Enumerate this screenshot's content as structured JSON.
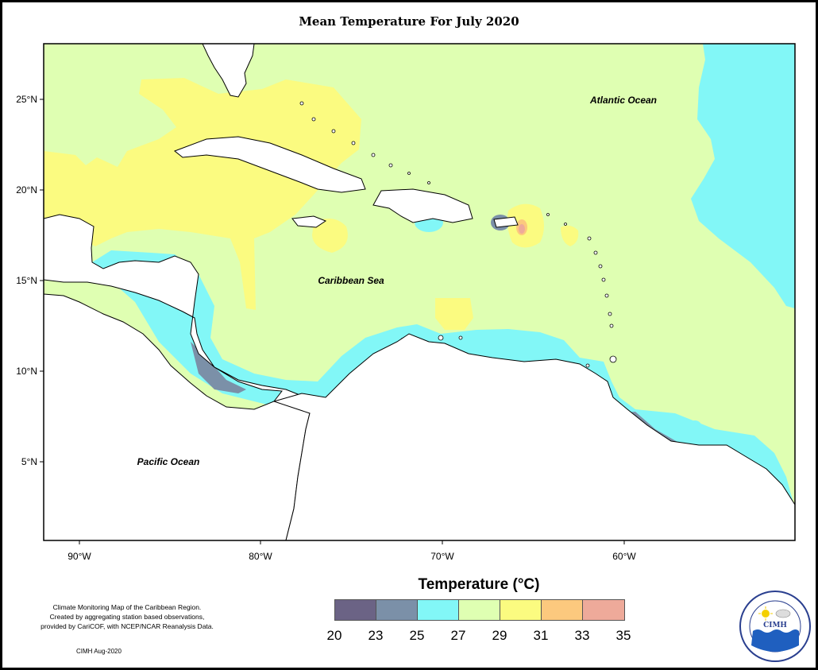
{
  "title": "Mean Temperature For July 2020",
  "map": {
    "lat_ticks": [
      "25°N",
      "20°N",
      "15°N",
      "10°N",
      "5°N"
    ],
    "lon_ticks": [
      "90°W",
      "80°W",
      "70°W",
      "60°W"
    ],
    "ocean_labels": {
      "atlantic": "Atlantic Ocean",
      "caribbean": "Caribbean Sea",
      "pacific": "Pacific Ocean"
    }
  },
  "legend": {
    "title": "Temperature (°C)",
    "colors": [
      "#6b6385",
      "#7b90a8",
      "#82f7f7",
      "#dfffb2",
      "#fbfb80",
      "#fcc97e",
      "#eeaa9a"
    ],
    "labels": [
      "20",
      "23",
      "25",
      "27",
      "29",
      "31",
      "33",
      "35"
    ]
  },
  "credits": {
    "line1": "Climate Monitoring Map of the Caribbean Region.",
    "line2": "Created by aggregating station based observations,",
    "line3": "provided by CariCOF, with NCEP/NCAR Reanalysis Data.",
    "date": "CIMH Aug-2020"
  },
  "logo": {
    "text": "CIMH"
  }
}
